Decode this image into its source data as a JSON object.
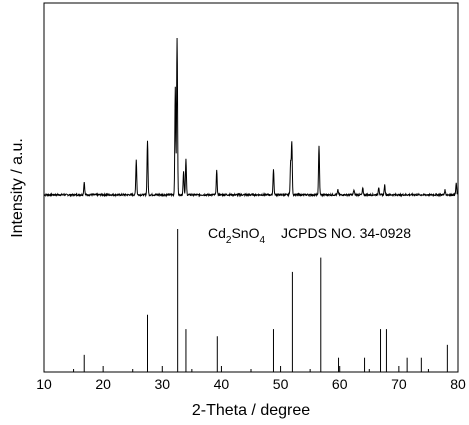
{
  "chart_data": {
    "type": "line",
    "xlabel": "2-Theta / degree",
    "ylabel": "Intensity / a.u.",
    "xlim": [
      10,
      80
    ],
    "x_ticks": [
      "10",
      "20",
      "30",
      "40",
      "50",
      "60",
      "70",
      "80"
    ],
    "grid": false,
    "reference": {
      "formula_main": "Cd",
      "formula_sub1": "2",
      "formula_mid": "SnO",
      "formula_sub2": "4",
      "card": "JCPDS NO. 34-0928",
      "peaks": [
        {
          "x": 16.8,
          "y": 12
        },
        {
          "x": 27.5,
          "y": 40
        },
        {
          "x": 32.6,
          "y": 100
        },
        {
          "x": 34.0,
          "y": 30
        },
        {
          "x": 39.3,
          "y": 25
        },
        {
          "x": 48.8,
          "y": 30
        },
        {
          "x": 52.0,
          "y": 70
        },
        {
          "x": 56.8,
          "y": 80
        },
        {
          "x": 59.8,
          "y": 10
        },
        {
          "x": 64.2,
          "y": 10
        },
        {
          "x": 66.9,
          "y": 30
        },
        {
          "x": 67.9,
          "y": 30
        },
        {
          "x": 71.4,
          "y": 10
        },
        {
          "x": 73.8,
          "y": 10
        },
        {
          "x": 78.2,
          "y": 19
        }
      ]
    },
    "measured": {
      "baseline": 2,
      "peaks": [
        {
          "x": 16.8,
          "y": 8
        },
        {
          "x": 25.6,
          "y": 22
        },
        {
          "x": 27.5,
          "y": 34
        },
        {
          "x": 32.2,
          "y": 68
        },
        {
          "x": 32.5,
          "y": 100
        },
        {
          "x": 33.6,
          "y": 15
        },
        {
          "x": 34.0,
          "y": 22
        },
        {
          "x": 39.2,
          "y": 15
        },
        {
          "x": 48.8,
          "y": 16
        },
        {
          "x": 51.7,
          "y": 20
        },
        {
          "x": 51.9,
          "y": 33
        },
        {
          "x": 56.5,
          "y": 31
        },
        {
          "x": 59.7,
          "y": 3
        },
        {
          "x": 62.4,
          "y": 3
        },
        {
          "x": 63.9,
          "y": 4
        },
        {
          "x": 66.6,
          "y": 5
        },
        {
          "x": 67.6,
          "y": 6
        },
        {
          "x": 77.8,
          "y": 3
        },
        {
          "x": 79.7,
          "y": 7
        }
      ]
    }
  }
}
